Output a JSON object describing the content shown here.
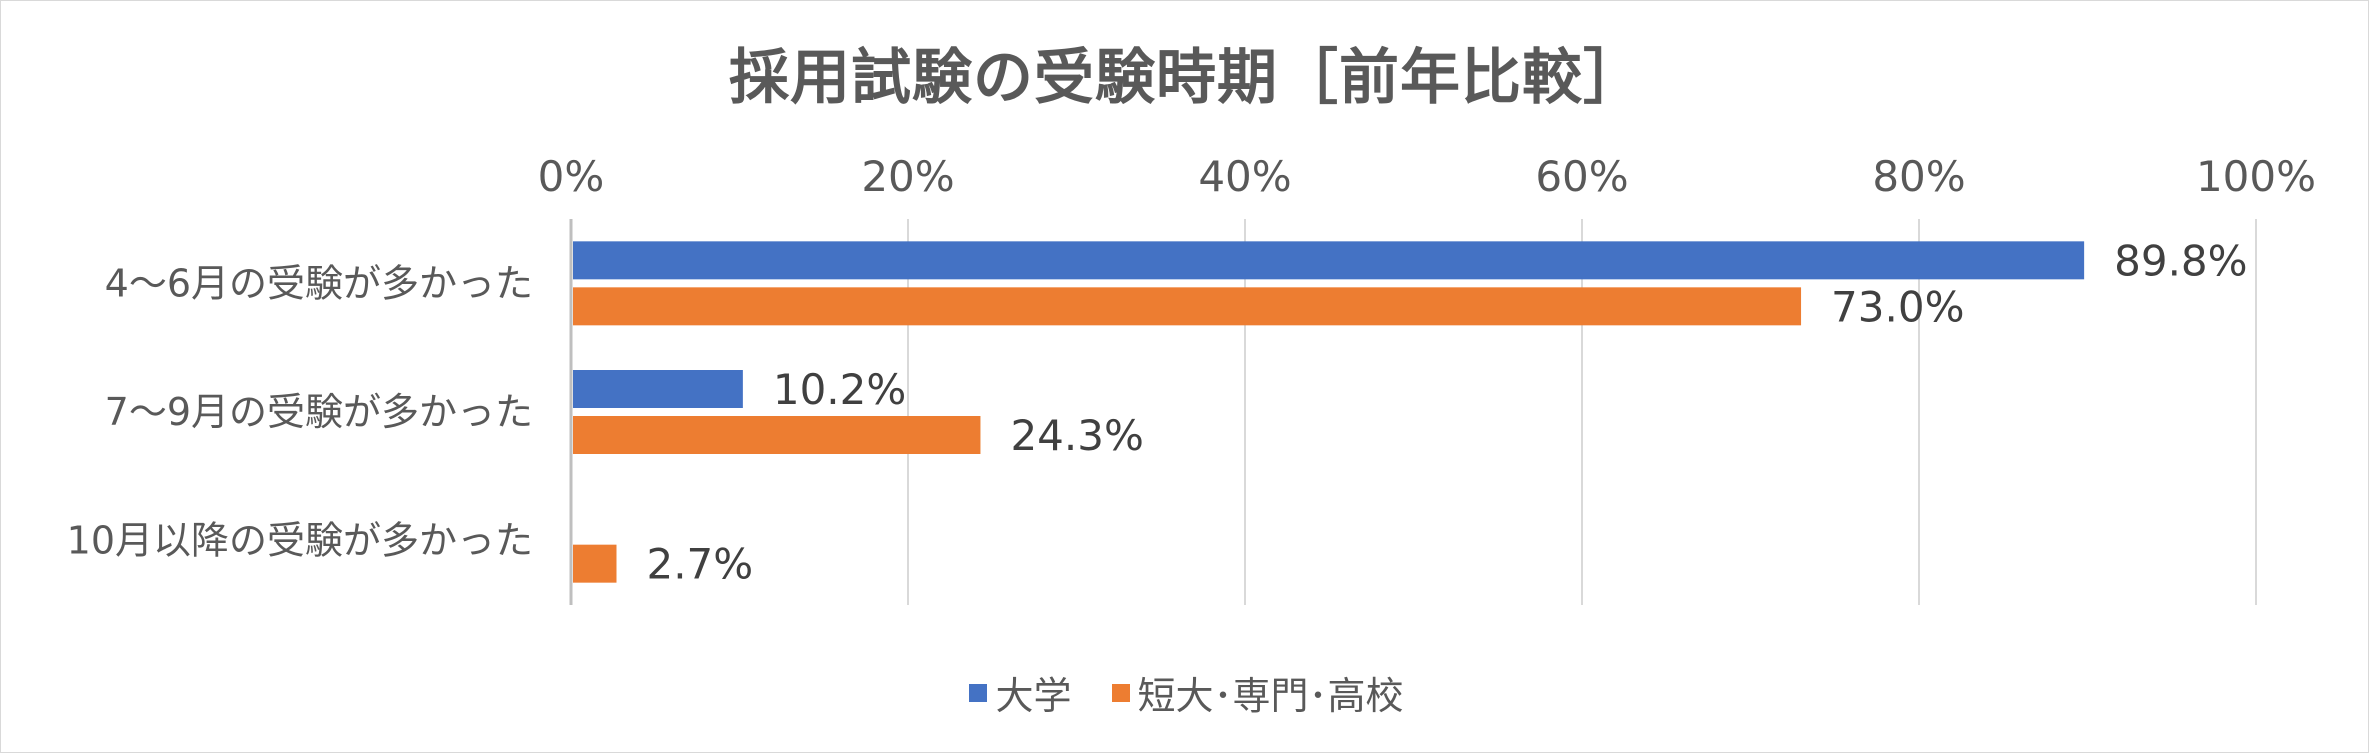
{
  "chart_data": {
    "type": "bar",
    "orientation": "horizontal",
    "title": "採用試験の受験時期［前年比較］",
    "categories": [
      "4～6月の受験が多かった",
      "7～9月の受験が多かった",
      "10月以降の受験が多かった"
    ],
    "series": [
      {
        "name": "大学",
        "color": "#4472C4",
        "values": [
          89.8,
          10.2,
          null
        ],
        "labels": [
          "89.8%",
          "10.2%",
          ""
        ]
      },
      {
        "name": "短大･専門･高校",
        "color": "#ED7D31",
        "values": [
          73.0,
          24.3,
          2.7
        ],
        "labels": [
          "73.0%",
          "24.3%",
          "2.7%"
        ]
      }
    ],
    "xlim": [
      0,
      100
    ],
    "xticks": [
      "0%",
      "20%",
      "40%",
      "60%",
      "80%",
      "100%"
    ],
    "grid": true,
    "legend_position": "bottom"
  }
}
